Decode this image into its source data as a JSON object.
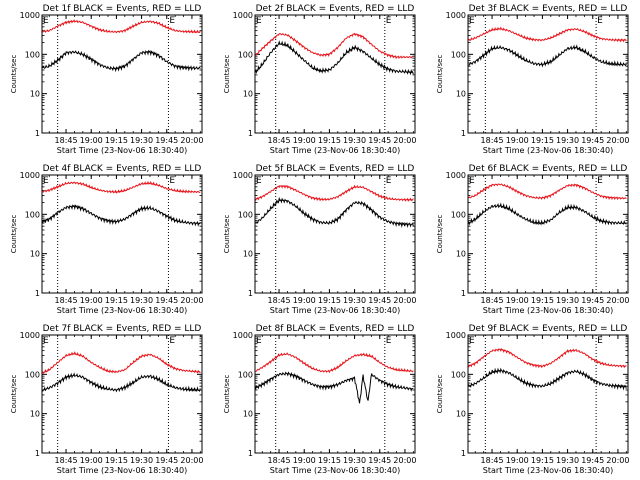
{
  "colors": {
    "events": "#000000",
    "lld": "#e8141b",
    "axis": "#000000"
  },
  "chart_data": [
    {
      "type": "line",
      "title": "Det 1f BLACK = Events, RED = LLD",
      "xlabel": "Start Time (23-Nov-06 18:30:40)",
      "ylabel": "Counts/sec",
      "y_scale": "log",
      "ylim": [
        1,
        1000
      ],
      "y_ticks": [
        "1",
        "10",
        "100",
        "1000"
      ],
      "xlim": [
        "18:30:40",
        "20:06:00"
      ],
      "x_ticks": [
        "18:45",
        "19:00",
        "19:15",
        "19:30",
        "19:45",
        "20:00"
      ],
      "x_tick_labels": [
        "18:45",
        "19:00",
        "19:15",
        "19:30",
        "19:45",
        "20:00"
      ],
      "vlines": [
        "18:40",
        "19:46"
      ],
      "markers": [
        {
          "label": "E",
          "x": "18:30:40"
        },
        {
          "label": "E",
          "x": "19:46"
        }
      ],
      "x": [
        "18:31",
        "18:35",
        "18:40",
        "18:45",
        "18:50",
        "18:55",
        "19:00",
        "19:05",
        "19:10",
        "19:15",
        "19:20",
        "19:25",
        "19:30",
        "19:35",
        "19:40",
        "19:45",
        "19:50",
        "19:55",
        "20:00",
        "20:05"
      ],
      "series": [
        {
          "name": "Events",
          "color": "#000000",
          "values": [
            45,
            50,
            70,
            110,
            115,
            100,
            75,
            55,
            45,
            43,
            50,
            75,
            110,
            115,
            95,
            65,
            50,
            46,
            45,
            44
          ]
        },
        {
          "name": "LLD",
          "color": "#e8141b",
          "values": [
            380,
            400,
            520,
            650,
            700,
            650,
            520,
            420,
            380,
            370,
            400,
            520,
            650,
            690,
            620,
            480,
            400,
            380,
            375,
            370
          ]
        }
      ]
    },
    {
      "type": "line",
      "title": "Det 2f BLACK = Events, RED = LLD",
      "xlabel": "Start Time (23-Nov-06 18:30:40)",
      "ylabel": "Counts/sec",
      "y_scale": "log",
      "ylim": [
        1,
        1000
      ],
      "y_ticks": [
        "1",
        "10",
        "100",
        "1000"
      ],
      "xlim": [
        "18:30:40",
        "20:06:00"
      ],
      "x_ticks": [
        "18:45",
        "19:00",
        "19:15",
        "19:30",
        "19:45",
        "20:00"
      ],
      "x_tick_labels": [
        "18:45",
        "19:00",
        "19:15",
        "19:30",
        "19:45",
        "20:00"
      ],
      "vlines": [
        "18:43",
        "19:48"
      ],
      "markers": [
        {
          "label": "E",
          "x": "18:30:40"
        },
        {
          "label": "E",
          "x": "19:48"
        }
      ],
      "x": [
        "18:31",
        "18:35",
        "18:40",
        "18:45",
        "18:50",
        "18:55",
        "19:00",
        "19:05",
        "19:10",
        "19:15",
        "19:20",
        "19:25",
        "19:30",
        "19:35",
        "19:40",
        "19:45",
        "19:50",
        "19:55",
        "20:00",
        "20:05"
      ],
      "series": [
        {
          "name": "Events",
          "color": "#000000",
          "values": [
            35,
            55,
            110,
            190,
            170,
            110,
            70,
            45,
            38,
            40,
            60,
            110,
            150,
            120,
            80,
            55,
            42,
            37,
            36,
            35
          ]
        },
        {
          "name": "LLD",
          "color": "#e8141b",
          "values": [
            95,
            140,
            220,
            330,
            310,
            220,
            150,
            110,
            95,
            100,
            150,
            260,
            330,
            280,
            180,
            120,
            95,
            85,
            85,
            85
          ]
        }
      ]
    },
    {
      "type": "line",
      "title": "Det 3f BLACK = Events, RED = LLD",
      "xlabel": "Start Time (23-Nov-06 18:30:40)",
      "ylabel": "Counts/sec",
      "y_scale": "log",
      "ylim": [
        1,
        1000
      ],
      "y_ticks": [
        "1",
        "10",
        "100",
        "1000"
      ],
      "xlim": [
        "18:30:40",
        "20:06:00"
      ],
      "x_ticks": [
        "18:45",
        "19:00",
        "19:15",
        "19:30",
        "19:45",
        "20:00"
      ],
      "x_tick_labels": [
        "18:45",
        "19:00",
        "19:15",
        "19:30",
        "19:45",
        "20:00"
      ],
      "vlines": [
        "18:41",
        "19:47"
      ],
      "markers": [
        {
          "label": "E",
          "x": "18:30:40"
        },
        {
          "label": "E",
          "x": "19:47"
        }
      ],
      "x": [
        "18:31",
        "18:35",
        "18:40",
        "18:45",
        "18:50",
        "18:55",
        "19:00",
        "19:05",
        "19:10",
        "19:15",
        "19:20",
        "19:25",
        "19:30",
        "19:35",
        "19:40",
        "19:45",
        "19:50",
        "19:55",
        "20:00",
        "20:05"
      ],
      "series": [
        {
          "name": "Events",
          "color": "#000000",
          "values": [
            55,
            65,
            95,
            140,
            150,
            130,
            95,
            70,
            58,
            55,
            65,
            95,
            140,
            150,
            120,
            85,
            65,
            58,
            56,
            55
          ]
        },
        {
          "name": "LLD",
          "color": "#e8141b",
          "values": [
            230,
            260,
            330,
            420,
            450,
            400,
            320,
            260,
            235,
            230,
            260,
            330,
            420,
            440,
            380,
            300,
            250,
            235,
            230,
            230
          ]
        }
      ]
    },
    {
      "type": "line",
      "title": "Det 4f BLACK = Events, RED = LLD",
      "xlabel": "Start Time (23-Nov-06 18:30:40)",
      "ylabel": "Counts/sec",
      "y_scale": "log",
      "ylim": [
        1,
        1000
      ],
      "y_ticks": [
        "1",
        "10",
        "100",
        "1000"
      ],
      "xlim": [
        "18:30:40",
        "20:06:00"
      ],
      "x_ticks": [
        "18:45",
        "19:00",
        "19:15",
        "19:30",
        "19:45",
        "20:00"
      ],
      "x_tick_labels": [
        "18:45",
        "19:00",
        "19:15",
        "19:30",
        "19:45",
        "20:00"
      ],
      "vlines": [
        "18:40",
        "19:46"
      ],
      "markers": [
        {
          "label": "E",
          "x": "18:30:40"
        },
        {
          "label": "E",
          "x": "19:46"
        }
      ],
      "x": [
        "18:31",
        "18:35",
        "18:40",
        "18:45",
        "18:50",
        "18:55",
        "19:00",
        "19:05",
        "19:10",
        "19:15",
        "19:20",
        "19:25",
        "19:30",
        "19:35",
        "19:40",
        "19:45",
        "19:50",
        "19:55",
        "20:00",
        "20:05"
      ],
      "series": [
        {
          "name": "Events",
          "color": "#000000",
          "values": [
            65,
            75,
            110,
            150,
            160,
            140,
            105,
            80,
            68,
            65,
            75,
            105,
            140,
            145,
            120,
            90,
            70,
            63,
            60,
            58
          ]
        },
        {
          "name": "LLD",
          "color": "#e8141b",
          "values": [
            380,
            410,
            500,
            610,
            640,
            590,
            480,
            410,
            380,
            370,
            400,
            490,
            600,
            620,
            550,
            450,
            400,
            380,
            375,
            370
          ]
        }
      ]
    },
    {
      "type": "line",
      "title": "Det 5f BLACK = Events, RED = LLD",
      "xlabel": "Start Time (23-Nov-06 18:30:40)",
      "ylabel": "Counts/sec",
      "y_scale": "log",
      "ylim": [
        1,
        1000
      ],
      "y_ticks": [
        "1",
        "10",
        "100",
        "1000"
      ],
      "xlim": [
        "18:30:40",
        "20:06:00"
      ],
      "x_ticks": [
        "18:45",
        "19:00",
        "19:15",
        "19:30",
        "19:45",
        "20:00"
      ],
      "x_tick_labels": [
        "18:45",
        "19:00",
        "19:15",
        "19:30",
        "19:45",
        "20:00"
      ],
      "vlines": [
        "18:43",
        "19:48"
      ],
      "markers": [
        {
          "label": "E",
          "x": "18:30:40"
        },
        {
          "label": "E",
          "x": "19:48"
        }
      ],
      "x": [
        "18:31",
        "18:35",
        "18:40",
        "18:45",
        "18:50",
        "18:55",
        "19:00",
        "19:05",
        "19:10",
        "19:15",
        "19:20",
        "19:25",
        "19:30",
        "19:35",
        "19:40",
        "19:45",
        "19:50",
        "19:55",
        "20:00",
        "20:05"
      ],
      "series": [
        {
          "name": "Events",
          "color": "#000000",
          "values": [
            60,
            80,
            140,
            230,
            220,
            160,
            105,
            75,
            62,
            60,
            75,
            130,
            200,
            190,
            130,
            85,
            65,
            58,
            56,
            55
          ]
        },
        {
          "name": "LLD",
          "color": "#e8141b",
          "values": [
            240,
            280,
            380,
            520,
            510,
            410,
            320,
            260,
            240,
            240,
            280,
            380,
            500,
            490,
            380,
            290,
            250,
            240,
            235,
            235
          ]
        }
      ]
    },
    {
      "type": "line",
      "title": "Det 6f BLACK = Events, RED = LLD",
      "xlabel": "Start Time (23-Nov-06 18:30:40)",
      "ylabel": "Counts/sec",
      "y_scale": "log",
      "ylim": [
        1,
        1000
      ],
      "y_ticks": [
        "1",
        "10",
        "100",
        "1000"
      ],
      "xlim": [
        "18:30:40",
        "20:06:00"
      ],
      "x_ticks": [
        "18:45",
        "19:00",
        "19:15",
        "19:30",
        "19:45",
        "20:00"
      ],
      "x_tick_labels": [
        "18:45",
        "19:00",
        "19:15",
        "19:30",
        "19:45",
        "20:00"
      ],
      "vlines": [
        "18:41",
        "19:47"
      ],
      "markers": [
        {
          "label": "E",
          "x": "18:30:40"
        },
        {
          "label": "E",
          "x": "19:47"
        }
      ],
      "x": [
        "18:31",
        "18:35",
        "18:40",
        "18:45",
        "18:50",
        "18:55",
        "19:00",
        "19:05",
        "19:10",
        "19:15",
        "19:20",
        "19:25",
        "19:30",
        "19:35",
        "19:40",
        "19:45",
        "19:50",
        "19:55",
        "20:00",
        "20:05"
      ],
      "series": [
        {
          "name": "Events",
          "color": "#000000",
          "values": [
            60,
            75,
            115,
            160,
            165,
            140,
            100,
            75,
            62,
            60,
            72,
            110,
            150,
            150,
            120,
            85,
            68,
            62,
            60,
            60
          ]
        },
        {
          "name": "LLD",
          "color": "#e8141b",
          "values": [
            260,
            300,
            420,
            560,
            580,
            500,
            380,
            300,
            265,
            260,
            300,
            410,
            540,
            560,
            470,
            360,
            290,
            265,
            260,
            255
          ]
        }
      ]
    },
    {
      "type": "line",
      "title": "Det 7f BLACK = Events, RED = LLD",
      "xlabel": "Start Time (23-Nov-06 18:30:40)",
      "ylabel": "Counts/sec",
      "y_scale": "log",
      "ylim": [
        1,
        1000
      ],
      "y_ticks": [
        "1",
        "10",
        "100",
        "1000"
      ],
      "xlim": [
        "18:30:40",
        "20:06:00"
      ],
      "x_ticks": [
        "18:45",
        "19:00",
        "19:15",
        "19:30",
        "19:45",
        "20:00"
      ],
      "x_tick_labels": [
        "18:45",
        "19:00",
        "19:15",
        "19:30",
        "19:45",
        "20:00"
      ],
      "vlines": [
        "18:40",
        "19:46"
      ],
      "markers": [
        {
          "label": "E",
          "x": "18:30:40"
        },
        {
          "label": "E",
          "x": "19:46"
        }
      ],
      "x": [
        "18:31",
        "18:35",
        "18:40",
        "18:45",
        "18:50",
        "18:55",
        "19:00",
        "19:05",
        "19:10",
        "19:15",
        "19:20",
        "19:25",
        "19:30",
        "19:35",
        "19:40",
        "19:45",
        "19:50",
        "19:55",
        "20:00",
        "20:05"
      ],
      "series": [
        {
          "name": "Events",
          "color": "#000000",
          "values": [
            40,
            45,
            60,
            85,
            95,
            85,
            62,
            48,
            42,
            40,
            46,
            62,
            85,
            90,
            75,
            55,
            46,
            42,
            41,
            40
          ]
        },
        {
          "name": "LLD",
          "color": "#e8141b",
          "values": [
            110,
            130,
            200,
            300,
            340,
            290,
            200,
            150,
            120,
            115,
            130,
            200,
            290,
            320,
            260,
            180,
            140,
            125,
            120,
            115
          ]
        }
      ]
    },
    {
      "type": "line",
      "title": "Det 8f BLACK = Events, RED = LLD",
      "xlabel": "Start Time (23-Nov-06 18:30:40)",
      "ylabel": "Counts/sec",
      "y_scale": "log",
      "ylim": [
        1,
        1000
      ],
      "y_ticks": [
        "1",
        "10",
        "100",
        "1000"
      ],
      "xlim": [
        "18:30:40",
        "20:06:00"
      ],
      "x_ticks": [
        "18:45",
        "19:00",
        "19:15",
        "19:30",
        "19:45",
        "20:00"
      ],
      "x_tick_labels": [
        "18:45",
        "19:00",
        "19:15",
        "19:30",
        "19:45",
        "20:00"
      ],
      "vlines": [
        "18:43",
        "19:48"
      ],
      "markers": [
        {
          "label": "E",
          "x": "18:30:40"
        },
        {
          "label": "E",
          "x": "19:48"
        }
      ],
      "x": [
        "18:31",
        "18:35",
        "18:40",
        "18:45",
        "18:50",
        "18:55",
        "19:00",
        "19:05",
        "19:10",
        "19:15",
        "19:20",
        "19:25",
        "19:30",
        "19:33",
        "19:35",
        "19:38",
        "19:40",
        "19:45",
        "19:50",
        "19:55",
        "20:00",
        "20:05"
      ],
      "series": [
        {
          "name": "Events",
          "color": "#000000",
          "values": [
            45,
            55,
            75,
            100,
            105,
            90,
            70,
            55,
            48,
            48,
            55,
            70,
            80,
            18,
            95,
            20,
            100,
            70,
            55,
            48,
            45,
            42
          ]
        },
        {
          "name": "LLD",
          "color": "#e8141b",
          "values": [
            120,
            150,
            210,
            310,
            330,
            270,
            190,
            140,
            120,
            120,
            150,
            220,
            300,
            310,
            320,
            300,
            290,
            200,
            150,
            130,
            125,
            120
          ]
        }
      ]
    },
    {
      "type": "line",
      "title": "Det 9f BLACK = Events, RED = LLD",
      "xlabel": "Start Time (23-Nov-06 18:30:40)",
      "ylabel": "Counts/sec",
      "y_scale": "log",
      "ylim": [
        1,
        1000
      ],
      "y_ticks": [
        "1",
        "10",
        "100",
        "1000"
      ],
      "xlim": [
        "18:30:40",
        "20:06:00"
      ],
      "x_ticks": [
        "18:45",
        "19:00",
        "19:15",
        "19:30",
        "19:45",
        "20:00"
      ],
      "x_tick_labels": [
        "18:45",
        "19:00",
        "19:15",
        "19:30",
        "19:45",
        "20:00"
      ],
      "vlines": [
        "18:41",
        "19:47"
      ],
      "markers": [
        {
          "label": "E",
          "x": "18:30:40"
        },
        {
          "label": "E",
          "x": "19:47"
        }
      ],
      "x": [
        "18:31",
        "18:35",
        "18:40",
        "18:45",
        "18:50",
        "18:55",
        "19:00",
        "19:05",
        "19:10",
        "19:15",
        "19:20",
        "19:25",
        "19:30",
        "19:35",
        "19:40",
        "19:45",
        "19:50",
        "19:55",
        "20:00",
        "20:05"
      ],
      "series": [
        {
          "name": "Events",
          "color": "#000000",
          "values": [
            50,
            58,
            80,
            115,
            125,
            110,
            80,
            60,
            52,
            50,
            58,
            80,
            110,
            120,
            100,
            72,
            58,
            52,
            50,
            48
          ]
        },
        {
          "name": "LLD",
          "color": "#e8141b",
          "values": [
            160,
            190,
            280,
            400,
            430,
            370,
            270,
            200,
            170,
            160,
            190,
            270,
            390,
            410,
            340,
            240,
            190,
            170,
            165,
            160
          ]
        }
      ]
    }
  ]
}
